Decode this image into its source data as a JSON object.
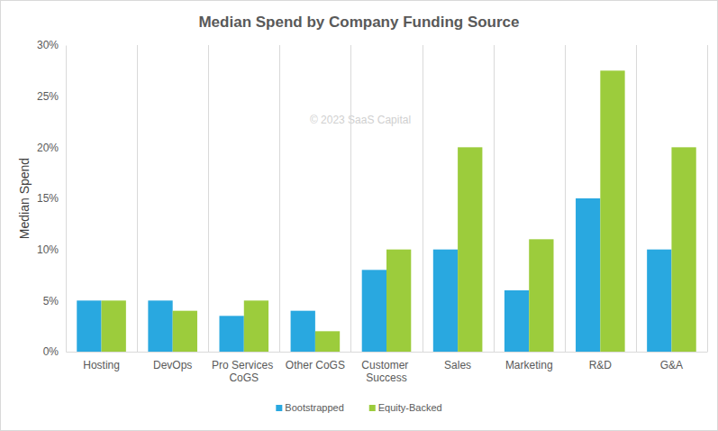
{
  "chart_data": {
    "type": "bar",
    "title": "Median Spend by Company Funding Source",
    "y_label": "Median Spend",
    "annotations": [
      "© 2023 SaaS Capital"
    ],
    "categories": [
      "Hosting",
      "DevOps",
      "Pro Services CoGS",
      "Other CoGS",
      "Customer Success",
      "Sales",
      "Marketing",
      "R&D",
      "G&A"
    ],
    "series": [
      {
        "name": "Bootstrapped",
        "color": "#29a8e0",
        "values": [
          5,
          5,
          3.5,
          4,
          8,
          10,
          6,
          15,
          10
        ]
      },
      {
        "name": "Equity-Backed",
        "color": "#9ccc3c",
        "values": [
          5,
          4,
          5,
          2,
          10,
          20,
          11,
          27.5,
          20
        ]
      }
    ],
    "ylim": [
      0,
      30
    ],
    "yticks": [
      {
        "value": 0,
        "label": "0%"
      },
      {
        "value": 5,
        "label": "5%"
      },
      {
        "value": 10,
        "label": "10%"
      },
      {
        "value": 15,
        "label": "15%"
      },
      {
        "value": 20,
        "label": "20%"
      },
      {
        "value": 25,
        "label": "25%"
      },
      {
        "value": 30,
        "label": "30%"
      }
    ],
    "grid": true,
    "legend": "bottom"
  }
}
